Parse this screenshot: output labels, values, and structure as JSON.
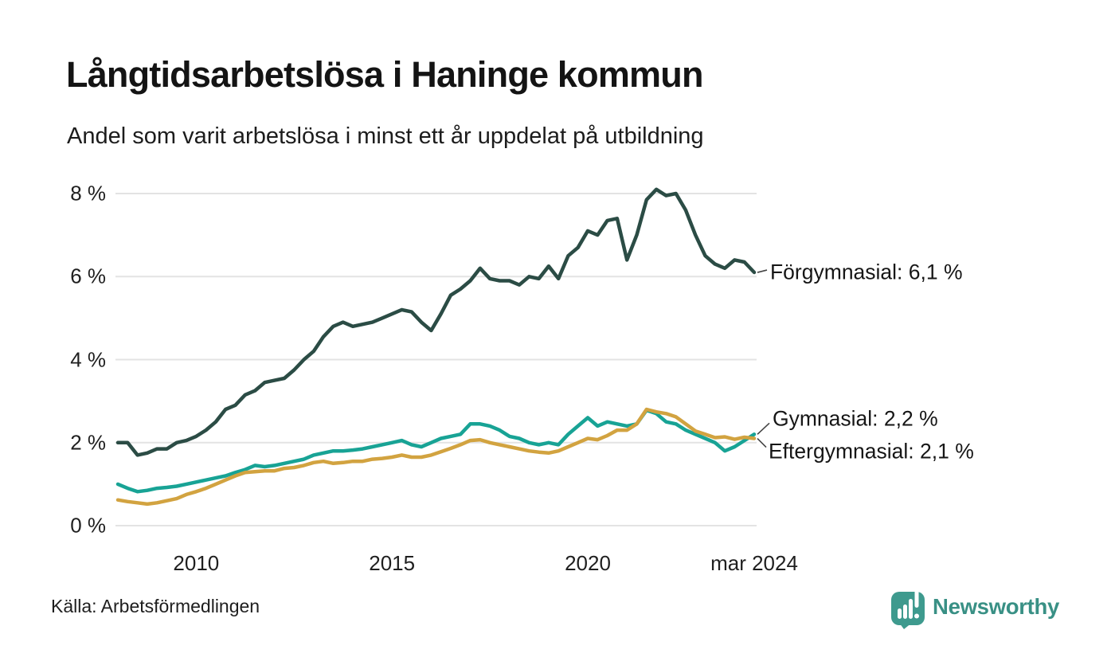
{
  "header": {
    "title": "Långtidsarbetslösa i Haninge kommun",
    "subtitle": "Andel som varit arbetslösa i minst ett år uppdelat på utbildning"
  },
  "footer": {
    "source": "Källa: Arbetsförmedlingen",
    "brand": "Newsworthy",
    "brand_color": "#399085"
  },
  "chart_data": {
    "type": "line",
    "title": "Långtidsarbetslösa i Haninge kommun",
    "subtitle": "Andel som varit arbetslösa i minst ett år uppdelat på utbildning",
    "xlabel": "",
    "ylabel": "",
    "x_unit": "year (decimal, quarterly samples)",
    "y_unit": "%",
    "xlim": [
      2008,
      2024.25
    ],
    "ylim": [
      0,
      8
    ],
    "grid": "horizontal",
    "gridline_color": "#e3e3e3",
    "background_color": "#ffffff",
    "y_ticks": [
      {
        "value": 8,
        "label": "8 %"
      },
      {
        "value": 6,
        "label": "6 %"
      },
      {
        "value": 4,
        "label": "4 %"
      },
      {
        "value": 2,
        "label": "2 %"
      },
      {
        "value": 0,
        "label": "0 %"
      }
    ],
    "x_ticks": [
      {
        "value": 2010,
        "label": "2010"
      },
      {
        "value": 2015,
        "label": "2015"
      },
      {
        "value": 2020,
        "label": "2020"
      },
      {
        "value": 2024.25,
        "label": "mar 2024"
      }
    ],
    "x": [
      2008,
      2008.25,
      2008.5,
      2008.75,
      2009,
      2009.25,
      2009.5,
      2009.75,
      2010,
      2010.25,
      2010.5,
      2010.75,
      2011,
      2011.25,
      2011.5,
      2011.75,
      2012,
      2012.25,
      2012.5,
      2012.75,
      2013,
      2013.25,
      2013.5,
      2013.75,
      2014,
      2014.25,
      2014.5,
      2014.75,
      2015,
      2015.25,
      2015.5,
      2015.75,
      2016,
      2016.25,
      2016.5,
      2016.75,
      2017,
      2017.25,
      2017.5,
      2017.75,
      2018,
      2018.25,
      2018.5,
      2018.75,
      2019,
      2019.25,
      2019.5,
      2019.75,
      2020,
      2020.25,
      2020.5,
      2020.75,
      2021,
      2021.25,
      2021.5,
      2021.75,
      2022,
      2022.25,
      2022.5,
      2022.75,
      2023,
      2023.25,
      2023.5,
      2023.75,
      2024,
      2024.25
    ],
    "series": [
      {
        "name": "Förgymnasial",
        "color": "#2b4c45",
        "end_value": 6.1,
        "annotation": "Förgymnasial: 6,1 %",
        "values": [
          2.0,
          2.0,
          1.7,
          1.75,
          1.85,
          1.85,
          2.0,
          2.05,
          2.15,
          2.3,
          2.5,
          2.8,
          2.9,
          3.15,
          3.25,
          3.45,
          3.5,
          3.55,
          3.75,
          4.0,
          4.2,
          4.55,
          4.8,
          4.9,
          4.8,
          4.85,
          4.9,
          5.0,
          5.1,
          5.2,
          5.15,
          4.9,
          4.7,
          5.1,
          5.55,
          5.7,
          5.9,
          6.2,
          5.95,
          5.9,
          5.9,
          5.8,
          6.0,
          5.95,
          6.25,
          5.95,
          6.5,
          6.7,
          7.1,
          7.0,
          7.35,
          7.4,
          6.4,
          7.0,
          7.85,
          8.1,
          7.95,
          8.0,
          7.6,
          7.0,
          6.5,
          6.3,
          6.2,
          6.4,
          6.35,
          6.1
        ]
      },
      {
        "name": "Gymnasial",
        "color": "#18a395",
        "end_value": 2.2,
        "annotation": "Gymnasial: 2,2 %",
        "values": [
          1.0,
          0.9,
          0.82,
          0.85,
          0.9,
          0.92,
          0.95,
          1.0,
          1.05,
          1.1,
          1.15,
          1.2,
          1.28,
          1.35,
          1.45,
          1.42,
          1.45,
          1.5,
          1.55,
          1.6,
          1.7,
          1.75,
          1.8,
          1.8,
          1.82,
          1.85,
          1.9,
          1.95,
          2.0,
          2.05,
          1.95,
          1.9,
          2.0,
          2.1,
          2.15,
          2.2,
          2.45,
          2.45,
          2.4,
          2.3,
          2.15,
          2.1,
          2.0,
          1.95,
          2.0,
          1.95,
          2.2,
          2.4,
          2.6,
          2.4,
          2.5,
          2.45,
          2.4,
          2.45,
          2.78,
          2.7,
          2.5,
          2.45,
          2.3,
          2.2,
          2.1,
          2.0,
          1.8,
          1.9,
          2.05,
          2.2
        ]
      },
      {
        "name": "Eftergymnasial",
        "color": "#d2a340",
        "end_value": 2.1,
        "annotation": "Eftergymnasial: 2,1 %",
        "values": [
          0.62,
          0.58,
          0.55,
          0.52,
          0.55,
          0.6,
          0.65,
          0.75,
          0.82,
          0.9,
          1.0,
          1.1,
          1.2,
          1.28,
          1.3,
          1.32,
          1.32,
          1.38,
          1.4,
          1.45,
          1.52,
          1.55,
          1.5,
          1.52,
          1.55,
          1.55,
          1.6,
          1.62,
          1.65,
          1.7,
          1.65,
          1.65,
          1.7,
          1.78,
          1.86,
          1.95,
          2.05,
          2.07,
          2.0,
          1.95,
          1.9,
          1.85,
          1.8,
          1.77,
          1.75,
          1.8,
          1.9,
          2.0,
          2.1,
          2.07,
          2.17,
          2.3,
          2.3,
          2.45,
          2.8,
          2.74,
          2.7,
          2.62,
          2.45,
          2.28,
          2.2,
          2.12,
          2.14,
          2.08,
          2.13,
          2.1
        ]
      }
    ]
  }
}
